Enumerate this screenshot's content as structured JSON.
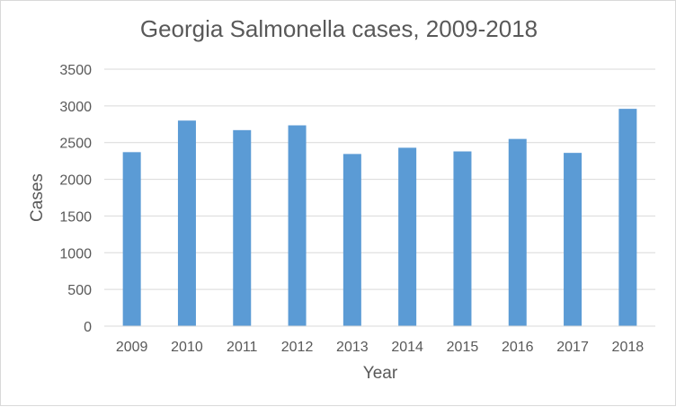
{
  "chart_data": {
    "type": "bar",
    "title": "Georgia Salmonella cases, 2009-2018",
    "xlabel": "Year",
    "ylabel": "Cases",
    "categories": [
      "2009",
      "2010",
      "2011",
      "2012",
      "2013",
      "2014",
      "2015",
      "2016",
      "2017",
      "2018"
    ],
    "values": [
      2370,
      2800,
      2670,
      2735,
      2345,
      2430,
      2380,
      2550,
      2360,
      2960
    ],
    "ylim": [
      0,
      3500
    ],
    "yticks": [
      "0",
      "500",
      "1000",
      "1500",
      "2000",
      "2500",
      "3000",
      "3500"
    ],
    "grid": true,
    "legend": "none",
    "bar_color": "#5b9bd5",
    "grid_color": "#d9d9d9"
  }
}
